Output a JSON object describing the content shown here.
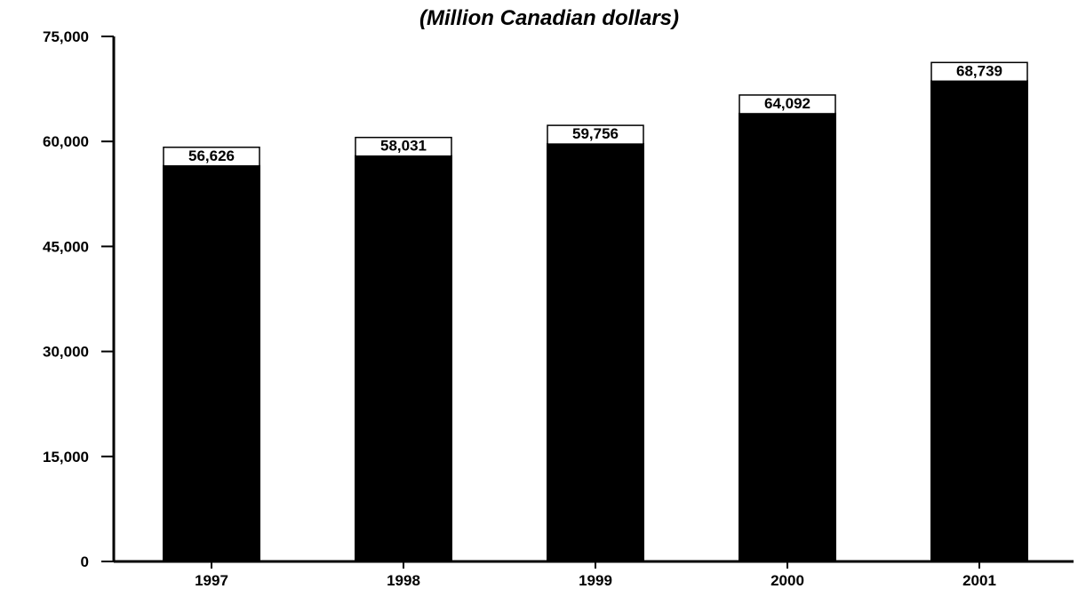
{
  "chart_data": {
    "type": "bar",
    "title": "(Million Canadian dollars)",
    "xlabel": "",
    "ylabel": "",
    "categories": [
      "1997",
      "1998",
      "1999",
      "2000",
      "2001"
    ],
    "values": [
      56626,
      58031,
      59756,
      64092,
      68739
    ],
    "value_labels": [
      "56,626",
      "58,031",
      "59,756",
      "64,092",
      "68,739"
    ],
    "ylim": [
      0,
      75000
    ],
    "yticks": [
      0,
      15000,
      30000,
      45000,
      60000,
      75000
    ],
    "ytick_labels": [
      "0",
      "15,000",
      "30,000",
      "45,000",
      "60,000",
      "75,000"
    ],
    "grid": false,
    "legend": "none",
    "bar_color": "#000000"
  }
}
